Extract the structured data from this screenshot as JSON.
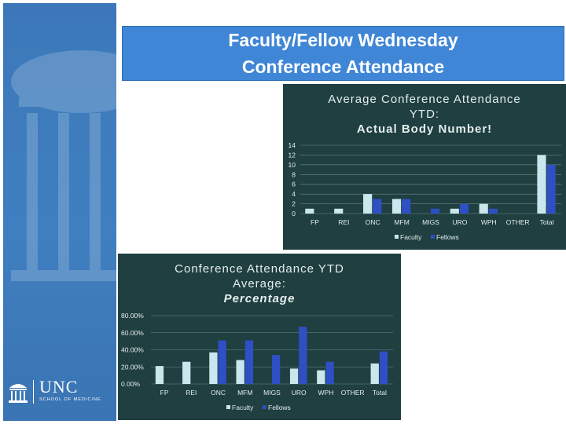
{
  "slide": {
    "title_line1": "Faculty/Fellow Wednesday",
    "title_line2": "Conference Attendance",
    "logo": {
      "word": "UNC",
      "sub": "SCHOOL OF MEDICINE"
    }
  },
  "colors": {
    "faculty": "#c9e7ec",
    "fellows": "#2f4fc4",
    "panel": "#1f3f40",
    "title_bg": "#3f86d6"
  },
  "chart_data": [
    {
      "type": "bar",
      "title_lines": [
        "Average Conference Attendance",
        "YTD:",
        "Actual Body Number!"
      ],
      "categories": [
        "FP",
        "REI",
        "ONC",
        "MFM",
        "MIGS",
        "URO",
        "WPH",
        "OTHER",
        "Total"
      ],
      "series": [
        {
          "name": "Faculty",
          "values": [
            1,
            1,
            4,
            3,
            0,
            1,
            2,
            0,
            12
          ]
        },
        {
          "name": "Fellows",
          "values": [
            0,
            0,
            3,
            3,
            1,
            2,
            1,
            0,
            10
          ]
        }
      ],
      "ylim": [
        0,
        14
      ],
      "yticks": [
        "0",
        "2",
        "4",
        "6",
        "8",
        "10",
        "12",
        "14"
      ],
      "legend_position": "bottom"
    },
    {
      "type": "bar",
      "title_lines": [
        "Conference Attendance YTD",
        "Average:",
        "Percentage"
      ],
      "categories": [
        "FP",
        "REI",
        "ONC",
        "MFM",
        "MIGS",
        "URO",
        "WPH",
        "OTHER",
        "Total"
      ],
      "series": [
        {
          "name": "Faculty",
          "values": [
            21,
            26,
            37,
            28,
            0,
            18,
            16,
            0,
            24
          ]
        },
        {
          "name": "Fellows",
          "values": [
            0,
            0,
            51,
            51,
            34,
            67,
            26,
            0,
            38
          ]
        }
      ],
      "ylim": [
        0,
        80
      ],
      "yticks": [
        "0.00%",
        "20.00%",
        "40.00%",
        "60.00%",
        "80.00%"
      ],
      "legend_position": "bottom"
    }
  ]
}
